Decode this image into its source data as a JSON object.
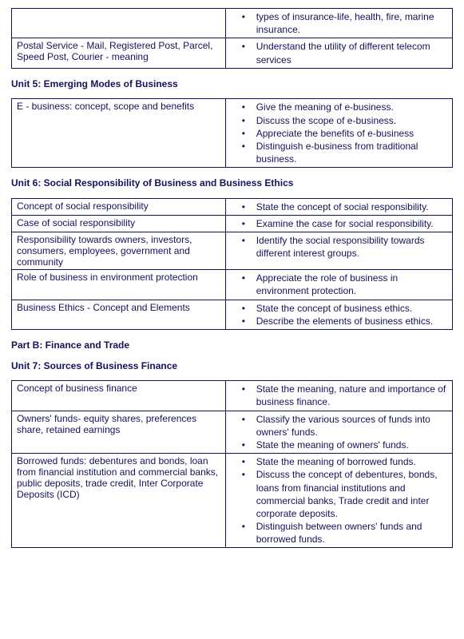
{
  "colors": {
    "text": "#13135A",
    "border": "#13135A",
    "background": "#ffffff"
  },
  "typography": {
    "fontFamily": "Arial, sans-serif",
    "bodySize": 12,
    "headingWeight": "bold"
  },
  "tables": {
    "intro": {
      "rows": [
        {
          "left": "",
          "bullets": [
            "types of insurance-life, health, fire, marine insurance."
          ]
        },
        {
          "left": "Postal Service - Mail, Registered Post, Parcel, Speed Post, Courier - meaning",
          "bullets": [
            "Understand the utility of different telecom services"
          ]
        }
      ]
    },
    "unit5": {
      "heading": "Unit 5: Emerging Modes of Business",
      "rows": [
        {
          "left": "E - business: concept, scope and benefits",
          "bullets": [
            "Give the meaning of e-business.",
            "Discuss the scope of e-business.",
            "Appreciate the benefits of e-business",
            "Distinguish e-business from traditional business."
          ]
        }
      ]
    },
    "unit6": {
      "heading": "Unit 6: Social Responsibility of Business and Business Ethics",
      "rows": [
        {
          "left": "Concept of social responsibility",
          "bullets": [
            "State the concept of social responsibility."
          ]
        },
        {
          "left": "Case of social responsibility",
          "bullets": [
            "Examine the case for social responsibility."
          ]
        },
        {
          "left": "Responsibility towards owners, investors, consumers, employees, government and community",
          "bullets": [
            "Identify the social responsibility towards different interest groups."
          ]
        },
        {
          "left": "Role of business in environment protection",
          "bullets": [
            "Appreciate the role of business in environment protection."
          ]
        },
        {
          "left": "Business Ethics - Concept and Elements",
          "bullets": [
            "State the concept of business ethics.",
            "Describe the elements of business ethics."
          ]
        }
      ]
    },
    "partB": {
      "heading": "Part B: Finance and Trade"
    },
    "unit7": {
      "heading": "Unit 7: Sources of Business Finance",
      "rows": [
        {
          "left": "Concept of business finance",
          "bullets": [
            "State the meaning, nature and importance of business finance."
          ]
        },
        {
          "left": "Owners' funds- equity shares, preferences share, retained earnings",
          "bullets": [
            "Classify the various sources of funds into owners' funds.",
            "State the meaning of owners' funds."
          ]
        },
        {
          "left": "Borrowed funds: debentures and bonds, loan from financial institution and commercial banks, public deposits, trade credit, Inter Corporate Deposits (ICD)",
          "bullets": [
            "State the meaning of borrowed funds.",
            "Discuss the concept of debentures, bonds, loans from financial institutions and commercial banks, Trade credit and inter corporate deposits.",
            "Distinguish between owners' funds and borrowed funds."
          ]
        }
      ]
    }
  }
}
